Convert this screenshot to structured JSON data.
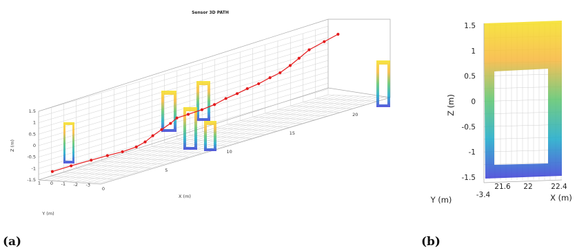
{
  "chart_data": [
    {
      "panel": "(a)",
      "type": "scatter",
      "title": "Sensor 3D PATH",
      "xlabel": "X (m)",
      "ylabel": "Y (m)",
      "zlabel": "Z (m)",
      "x_ticks": [
        "0",
        "5",
        "10",
        "15",
        "20"
      ],
      "y_ticks": [
        "1",
        "0",
        "-1",
        "-2",
        "-3"
      ],
      "z_ticks": [
        "1.5",
        "1",
        "0.5",
        "0",
        "-0.5",
        "-1",
        "-1.5"
      ],
      "xlim": [
        0,
        23
      ],
      "ylim": [
        -3.5,
        1.5
      ],
      "zlim": [
        -1.5,
        1.5
      ],
      "grid": true,
      "series": [
        {
          "color": "#e41a1c",
          "points": [
            [
              0.5,
              0.9,
              -1.2
            ],
            [
              1.5,
              0.4,
              -1.1
            ],
            [
              2.5,
              -0.2,
              -1.0
            ],
            [
              3.2,
              -0.8,
              -0.9
            ],
            [
              4.0,
              -1.2,
              -0.85
            ],
            [
              5.0,
              -1.3,
              -0.8
            ],
            [
              6.0,
              -1.0,
              -0.75
            ],
            [
              7.0,
              -0.6,
              -0.65
            ],
            [
              8.0,
              -0.3,
              -0.55
            ],
            [
              9.0,
              0.0,
              -0.45
            ],
            [
              9.8,
              0.3,
              -0.35
            ],
            [
              10.5,
              0.1,
              -0.3
            ],
            [
              11.2,
              -0.3,
              -0.2
            ],
            [
              12.0,
              -0.5,
              -0.1
            ],
            [
              13.0,
              -0.4,
              0.0
            ],
            [
              14.0,
              -0.3,
              0.05
            ],
            [
              15.0,
              -0.1,
              0.1
            ],
            [
              16.0,
              0.0,
              0.15
            ],
            [
              17.0,
              0.1,
              0.25
            ],
            [
              18.0,
              0.3,
              0.3
            ],
            [
              19.0,
              0.5,
              0.45
            ],
            [
              20.0,
              0.8,
              0.6
            ],
            [
              21.0,
              1.0,
              0.8
            ],
            [
              22.0,
              0.8,
              1.0
            ],
            [
              22.8,
              0.5,
              1.2
            ]
          ]
        }
      ]
    },
    {
      "panel": "(b)",
      "type": "scatter",
      "xlabel": "X (m)",
      "ylabel": "Y (m)",
      "zlabel": "Z (m)",
      "x_ticks": [
        "21.6",
        "22",
        "22.4"
      ],
      "y_ticks": [
        "-3.4"
      ],
      "z_ticks": [
        "1.5",
        "1",
        "0.5",
        "0",
        "-0.5",
        "-1",
        "-1.5"
      ],
      "zlim": [
        -1.5,
        1.5
      ],
      "grid": true,
      "colormap": "parula"
    }
  ]
}
